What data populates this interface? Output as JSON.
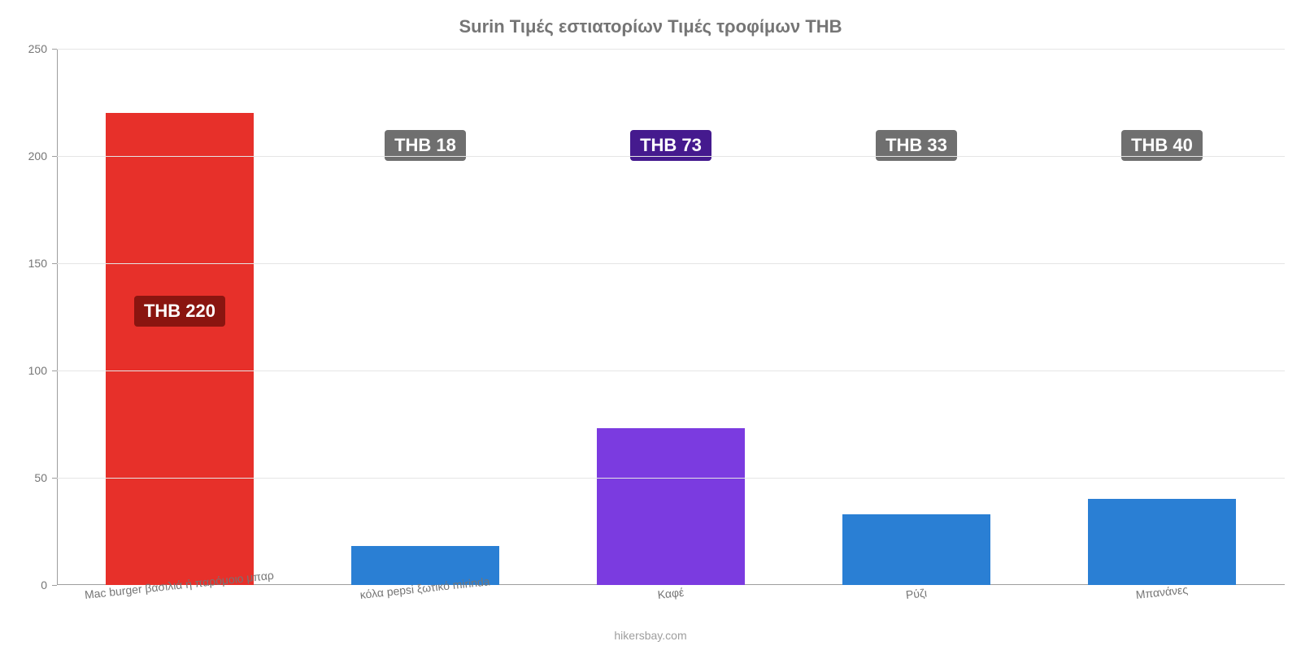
{
  "chart": {
    "type": "bar",
    "title": "Surin Τιμές εστιατορίων Τιμές τροφίμων THB",
    "title_fontsize": 22,
    "title_color": "#757575",
    "background_color": "#ffffff",
    "grid_color": "#e5e5e5",
    "axis_color": "#9e9e9e",
    "label_color": "#757575",
    "label_fontsize": 14,
    "ylim_min": 0,
    "ylim_max": 250,
    "ytick_step": 50,
    "yticks": [
      "0",
      "50",
      "100",
      "150",
      "200",
      "250"
    ],
    "bar_width_pct": 60,
    "value_label_fontsize": 22,
    "value_label_text_color": "#ffffff",
    "categories": [
      "Mac burger βασιλιά ή παρόμοιο μπαρ",
      "κόλα pepsi ξωτικό mirinda",
      "Καφέ",
      "Ρύζι",
      "Μπανάνες"
    ],
    "xlabel_rotate_deg": -6,
    "values": [
      220,
      18,
      73,
      33,
      40
    ],
    "value_labels": [
      "THB 220",
      "THB 18",
      "THB 73",
      "THB 33",
      "THB 40"
    ],
    "bar_colors": [
      "#e7302a",
      "#2a7fd4",
      "#7b3be0",
      "#2a7fd4",
      "#2a7fd4"
    ],
    "badge_bg_colors": [
      "#8a1510",
      "#6f6f6f",
      "#451a8e",
      "#6f6f6f",
      "#6f6f6f"
    ],
    "label_y_offset_pct": [
      49,
      18,
      18,
      18,
      18
    ],
    "footer": "hikersbay.com",
    "footer_color": "#9e9e9e",
    "footer_fontsize": 14
  }
}
